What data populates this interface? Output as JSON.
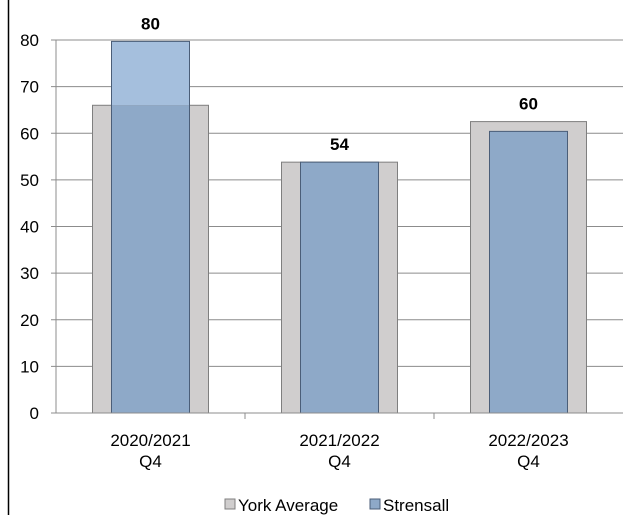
{
  "chart_data": {
    "type": "bar",
    "categories": [
      [
        "2020/2021",
        "Q4"
      ],
      [
        "2021/2022",
        "Q4"
      ],
      [
        "2022/2023",
        "Q4"
      ]
    ],
    "series": [
      {
        "name": "York Average",
        "values": [
          66,
          53.8,
          62.5
        ],
        "color": "#d0cece"
      },
      {
        "name": "Strensall",
        "values": [
          79.7,
          53.8,
          60.4
        ],
        "color": "#8ea9c8"
      }
    ],
    "data_labels": [
      "80",
      "54",
      "60"
    ],
    "y_ticks": [
      "0",
      "10",
      "20",
      "30",
      "40",
      "50",
      "60",
      "70",
      "80"
    ],
    "ylim": [
      0,
      80
    ],
    "grid": true,
    "legend_position": "bottom",
    "colors": {
      "york_fill": "#d0cece",
      "york_edge": "#7f7f7f",
      "strensall_fill": "#8ea9c8",
      "strensall_over_fill": "#a5bfdd",
      "strensall_edge": "#4b5e78",
      "grid": "#8c8c8c"
    }
  }
}
